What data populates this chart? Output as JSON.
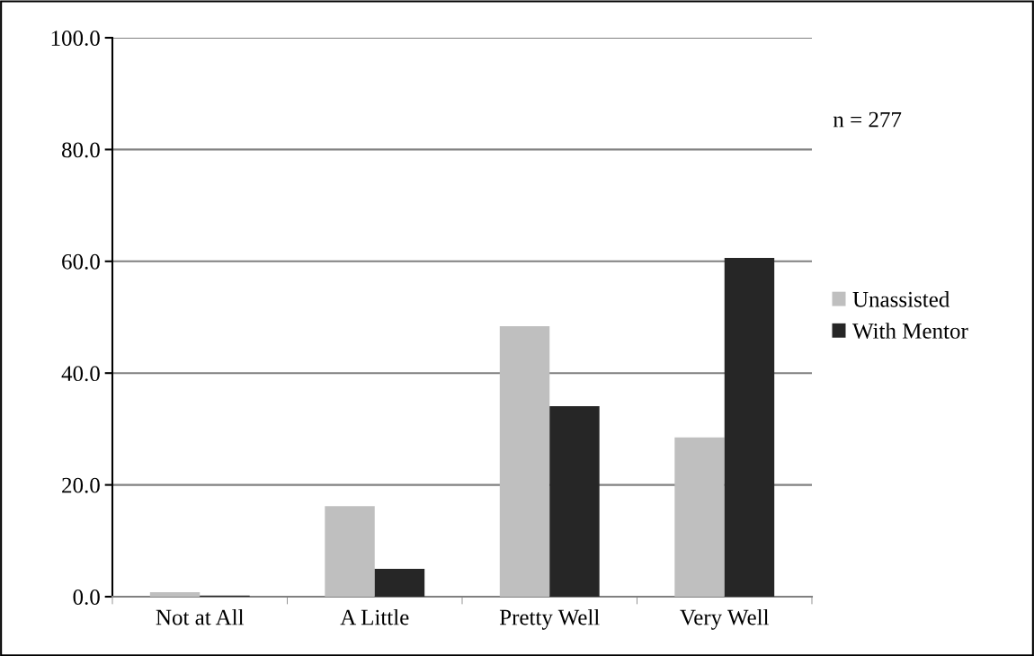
{
  "chart_data": {
    "type": "bar",
    "categories": [
      "Not at All",
      "A Little",
      "Pretty Well",
      "Very Well"
    ],
    "series": [
      {
        "name": "Unassisted",
        "color": "#bfbfbf",
        "values": [
          0.8,
          16.2,
          48.4,
          28.5
        ]
      },
      {
        "name": "With Mentor",
        "color": "#262626",
        "values": [
          0.2,
          5.0,
          34.1,
          60.6
        ]
      }
    ],
    "ylim": [
      0,
      100
    ],
    "yticks": [
      {
        "value": 0,
        "label": "0.0"
      },
      {
        "value": 20,
        "label": "20.0"
      },
      {
        "value": 40,
        "label": "40.0"
      },
      {
        "value": 60,
        "label": "60.0"
      },
      {
        "value": 80,
        "label": "80.0"
      },
      {
        "value": 100,
        "label": "100.0"
      }
    ],
    "grid": "y",
    "legend": "right",
    "annotations": [
      "n = 277"
    ]
  }
}
